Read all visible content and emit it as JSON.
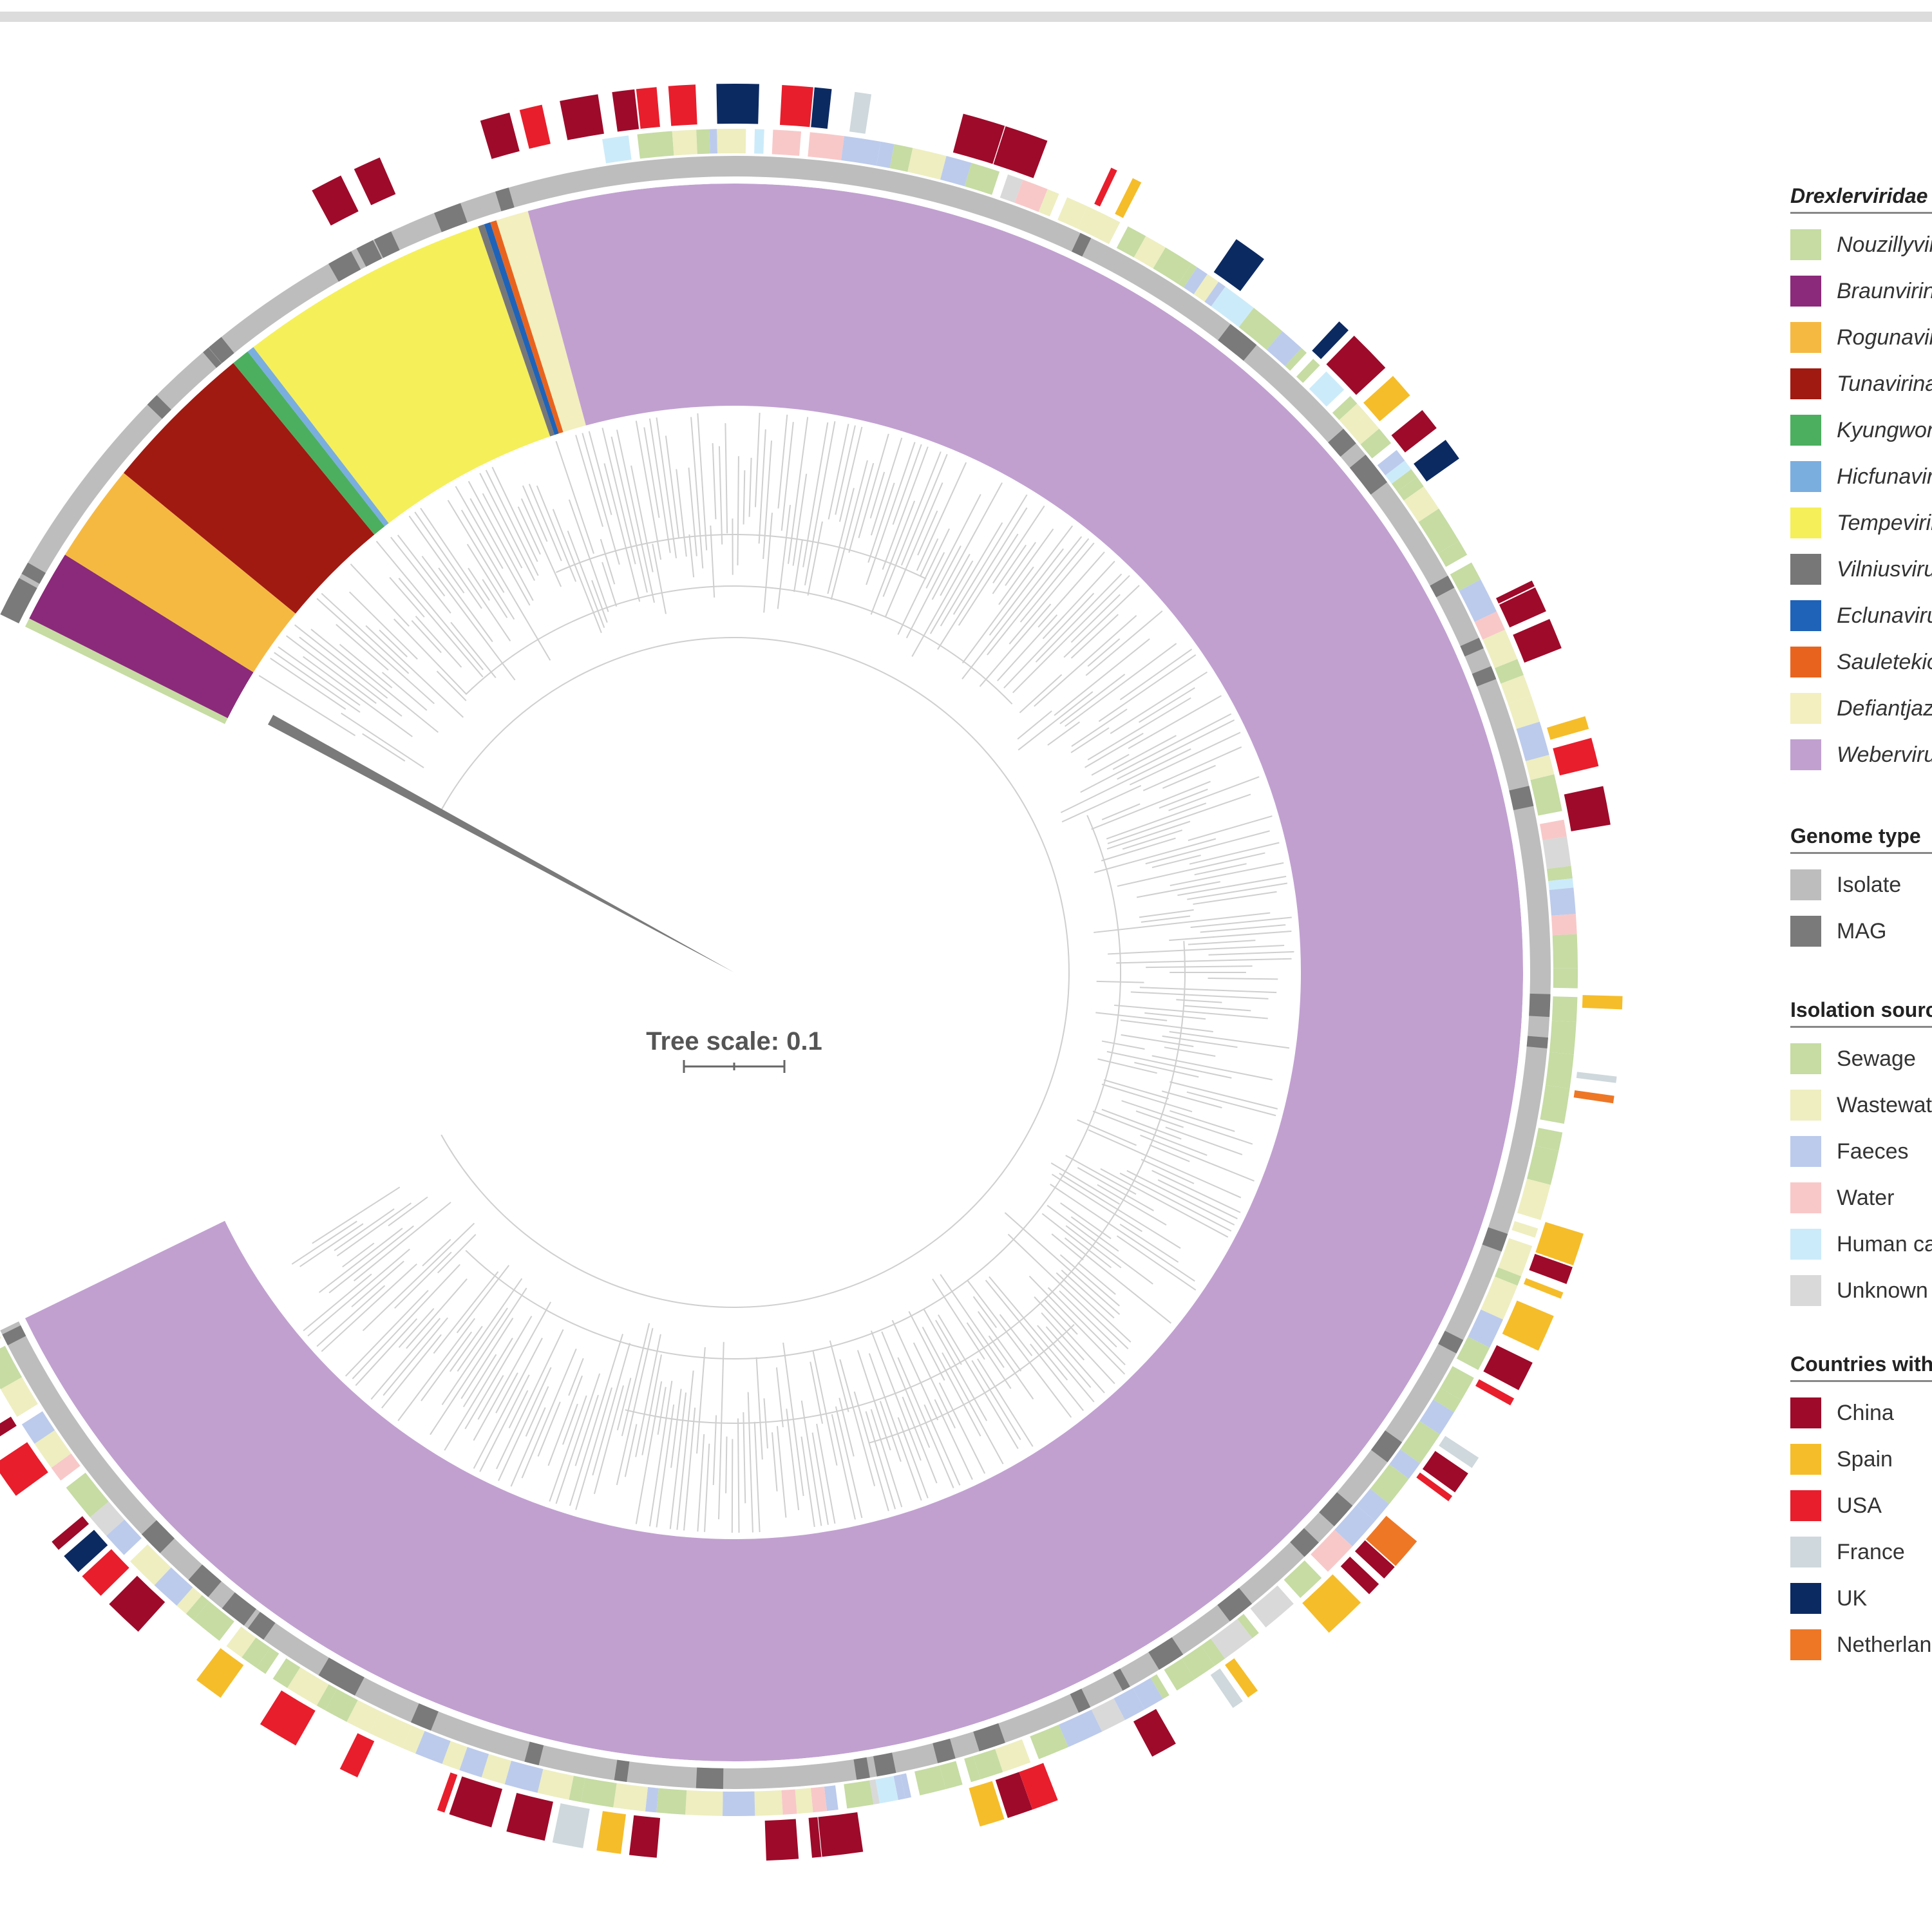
{
  "tree": {
    "scale_label": "Tree scale: 0.1",
    "genera": [
      {
        "name": "Nouzillyvirus",
        "color": "#c6dca3",
        "weight": 0.5
      },
      {
        "name": "Braunvirinae",
        "color": "#8b2a7a",
        "weight": 4
      },
      {
        "name": "Rogunavirus",
        "color": "#f5b942",
        "weight": 5.5
      },
      {
        "name": "Tunavirinae",
        "color": "#a01a12",
        "weight": 8.5
      },
      {
        "name": "Kyungwonvirus",
        "color": "#4caf60",
        "weight": 1
      },
      {
        "name": "Hicfunavirus",
        "color": "#7aaedf",
        "weight": 0.4
      },
      {
        "name": "Tempevirinae",
        "color": "#f5ef5a",
        "weight": 14
      },
      {
        "name": "Vilniusvirus",
        "color": "#777777",
        "weight": 0.35
      },
      {
        "name": "Eclunavirus",
        "color": "#1f63b8",
        "weight": 0.35
      },
      {
        "name": "Sauletekiovirus",
        "color": "#e8641e",
        "weight": 0.35
      },
      {
        "name": "Defiantjazzvirus",
        "color": "#f3efbe",
        "weight": 1.8
      },
      {
        "name": "Webervirus",
        "color": "#c1a0d0",
        "weight": 195
      }
    ]
  },
  "legend": {
    "family": {
      "title": "Drexlerviridae",
      "items": [
        {
          "label": "Nouzillyvirus",
          "color": "#c6dca3"
        },
        {
          "label": "Braunvirinae",
          "color": "#8b2a7a"
        },
        {
          "label": "Rogunavirus",
          "color": "#f5b942"
        },
        {
          "label": "Tunavirinae",
          "color": "#a01a12"
        },
        {
          "label": "Kyungwonvirus",
          "color": "#4caf60"
        },
        {
          "label": "Hicfunavirus",
          "color": "#7aaedf"
        },
        {
          "label": "Tempevirinae",
          "color": "#f5ef5a"
        },
        {
          "label": "Vilniusvirus",
          "color": "#777777"
        },
        {
          "label": "Eclunavirus",
          "color": "#1f63b8"
        },
        {
          "label": "Sauletekiovirus",
          "color": "#e8641e"
        },
        {
          "label": "Defiantjazzvirus",
          "color": "#f3efbe"
        },
        {
          "label": "Webervirus",
          "color": "#c1a0d0"
        }
      ]
    },
    "genome_type": {
      "title": "Genome type",
      "items": [
        {
          "label": "Isolate",
          "color": "#bdbdbd"
        },
        {
          "label": "MAG",
          "color": "#7a7a7a"
        }
      ]
    },
    "isolation_source": {
      "title": "Isolation source",
      "items": [
        {
          "label": "Sewage",
          "color": "#c6dca3"
        },
        {
          "label": "Wastewater",
          "color": "#eeeec0"
        },
        {
          "label": "Faeces",
          "color": "#bccbec"
        },
        {
          "label": "Water",
          "color": "#f8c8c8"
        },
        {
          "label": "Human cavity",
          "color": "#ccebfa"
        },
        {
          "label": "Unknown",
          "color": "#d9d9d9"
        }
      ]
    },
    "countries": {
      "title": "Countries with",
      "items": [
        {
          "label": "China",
          "color": "#9e0a2a"
        },
        {
          "label": "Spain",
          "color": "#f5bd2a"
        },
        {
          "label": "USA",
          "color": "#e81e2c"
        },
        {
          "label": "France",
          "color": "#cfd8dc"
        },
        {
          "label": "UK",
          "color": "#0c2a62"
        },
        {
          "label": "Netherlands",
          "color": "#ee7726"
        }
      ]
    }
  }
}
